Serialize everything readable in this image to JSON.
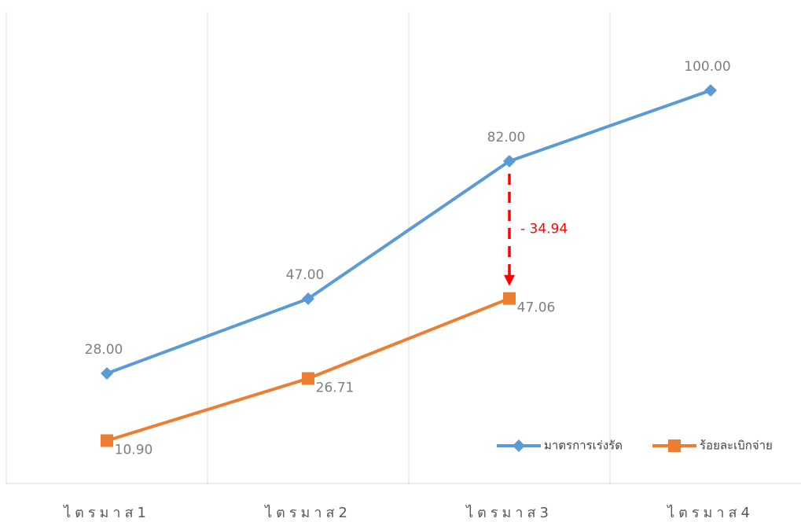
{
  "chart_data": {
    "type": "line",
    "categories": [
      "ไตรมาส1",
      "ไตรมาส2",
      "ไตรมาส3",
      "ไตรมาส4"
    ],
    "series": [
      {
        "name": "มาตรการเร่งรัด",
        "color": "#5b9bd5",
        "marker": "diamond",
        "values": [
          28,
          47,
          82,
          100
        ],
        "value_labels": [
          "28.00",
          "47.00",
          "82.00",
          "100.00"
        ]
      },
      {
        "name": "ร้อยละเบิกจ่าย",
        "color": "#ed7d31",
        "marker": "square",
        "values": [
          10.9,
          26.71,
          47.06,
          null
        ],
        "value_labels": [
          "10.90",
          "26.71",
          "47.06",
          null
        ]
      }
    ],
    "ylim": [
      0,
      120
    ],
    "annotation": {
      "text": "- 34.94",
      "color": "#ff0000"
    },
    "legend": "bottom-right"
  }
}
